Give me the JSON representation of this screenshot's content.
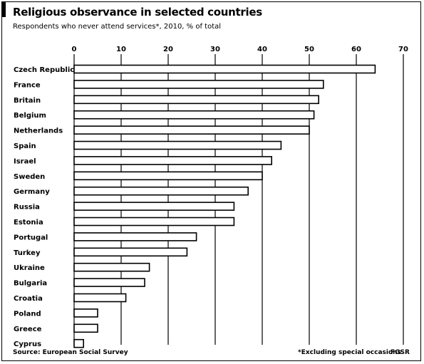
{
  "title": "Religious observance in selected countries",
  "subtitle": "Respondents who never attend services*, 2010, % of total",
  "source": "Source: European Social Survey",
  "footnote": "*Excluding special occasions",
  "tag": "FGSR",
  "chart_data": {
    "type": "bar",
    "orientation": "horizontal",
    "title": "Religious observance in selected countries",
    "subtitle": "Respondents who never attend services*, 2010, % of total",
    "xlim": [
      0,
      70
    ],
    "ticks": [
      0,
      10,
      20,
      30,
      40,
      50,
      60,
      70
    ],
    "grid": true,
    "categories": [
      "Czech Republic",
      "France",
      "Britain",
      "Belgium",
      "Netherlands",
      "Spain",
      "Israel",
      "Sweden",
      "Germany",
      "Russia",
      "Estonia",
      "Portugal",
      "Turkey",
      "Ukraine",
      "Bulgaria",
      "Croatia",
      "Poland",
      "Greece",
      "Cyprus"
    ],
    "values": [
      64,
      53,
      52,
      51,
      50,
      44,
      42,
      40,
      37,
      34,
      34,
      26,
      24,
      16,
      15,
      11,
      5,
      5,
      2
    ],
    "bar_color": "#ffffff",
    "bar_stroke": "#000000"
  }
}
